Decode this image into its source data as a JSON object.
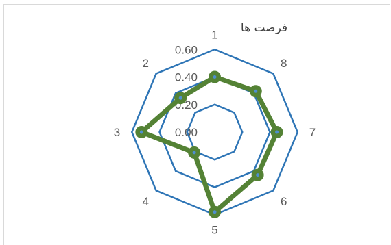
{
  "chart_data": {
    "type": "radar",
    "title": "فرصت ها",
    "categories": [
      "1",
      "2",
      "3",
      "4",
      "5",
      "6",
      "7",
      "8"
    ],
    "series": [
      {
        "values": [
          0.4,
          0.35,
          0.53,
          0.21,
          0.58,
          0.44,
          0.45,
          0.42
        ],
        "color": "#548235"
      }
    ],
    "rlim": [
      0,
      0.6
    ],
    "r_ticks": [
      "0.00",
      "0.20",
      "0.40",
      "0.60"
    ],
    "gridline_color": "#2e75b6",
    "legend": "none"
  }
}
